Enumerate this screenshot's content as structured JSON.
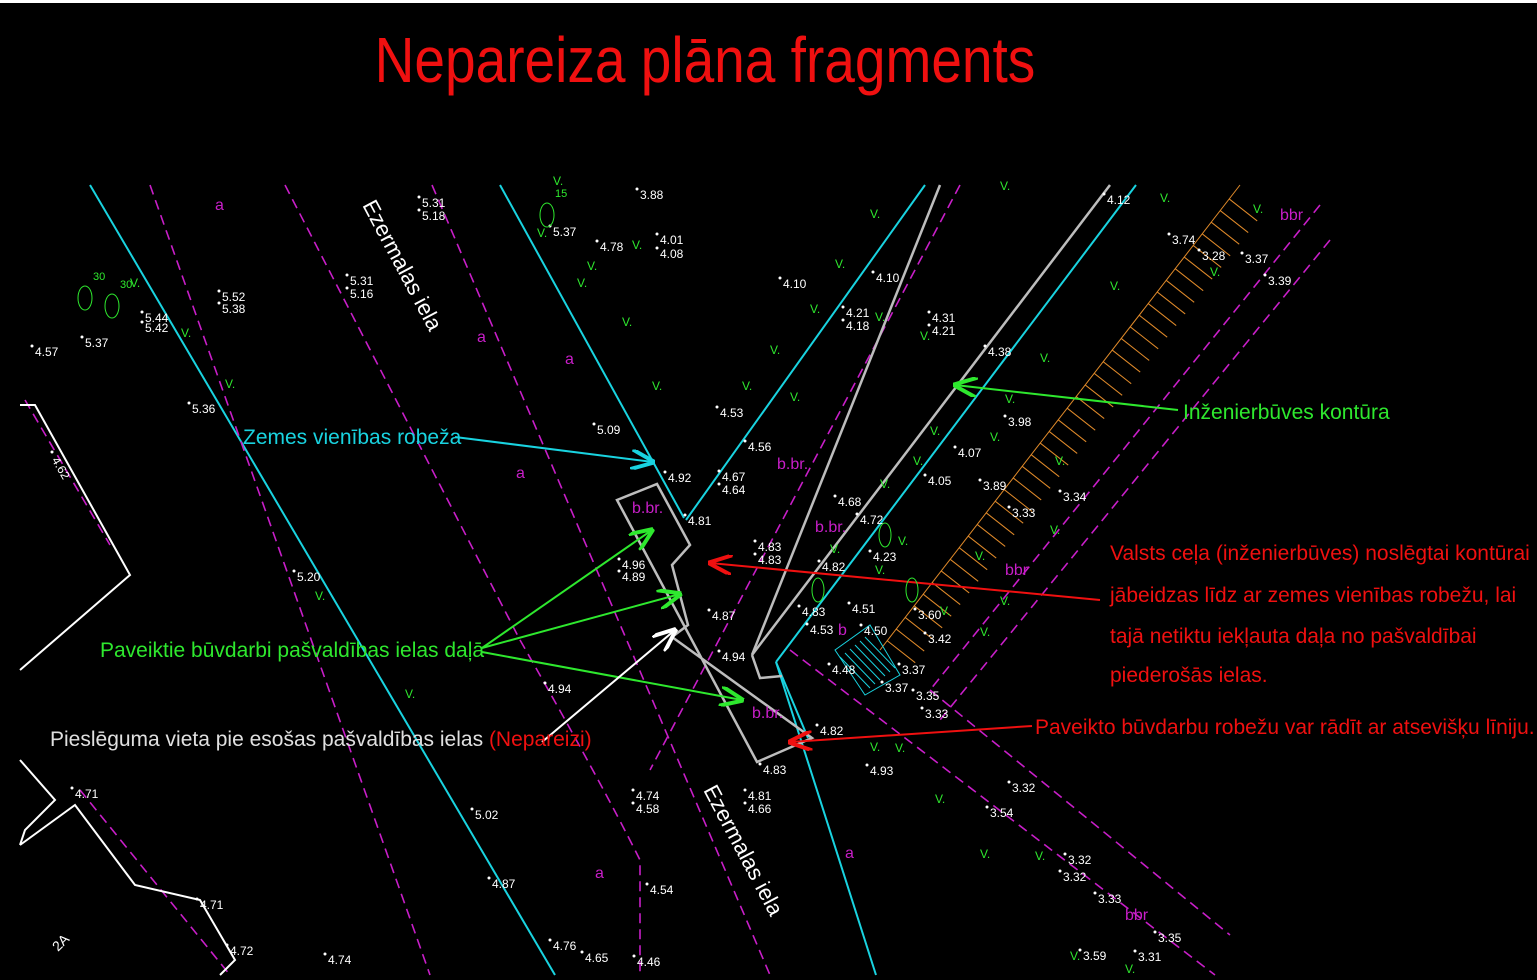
{
  "title": "Nepareiza plāna fragments",
  "annotations": {
    "land_boundary": "Zemes vienības robeža",
    "structure_contour": "Inženierbūves kontūra",
    "works_in_street": "Paveiktie būvdarbi pašvaldības ielas daļā",
    "connection_point": "Pieslēguma vieta pie esošas pašvaldības ielas",
    "connection_verdict": "(Nepareizi)",
    "closure_note": [
      "Valsts ceļa (inženierbūves) noslēgtai kontūrai",
      "jābeidzas līdz ar zemes vienības robežu, lai",
      "tajā netiktu iekļauta daļa no pašvaldībai",
      "piederošās ielas."
    ],
    "boundary_note": "Paveikto būvdarbu robežu var rādīt ar atsevišķu līniju."
  },
  "street_names": [
    "Ezermalas iela",
    "Ezermalas iela"
  ],
  "land_use_labels": [
    "a",
    "a",
    "a",
    "a",
    "a",
    "a",
    "b.br.",
    "b.br.",
    "b.br.",
    "b.br.",
    "b",
    "bbr",
    "bbr",
    "bbr"
  ],
  "vegetation_mark": "V.",
  "tree_labels": [
    "15",
    "30",
    "30"
  ],
  "parcel_label": "2A",
  "elevation_labels": [
    "3.88",
    "5.31",
    "5.18",
    "5.37",
    "4.78",
    "4.01",
    "4.08",
    "4.10",
    "4.10",
    "4.21",
    "4.18",
    "4.31",
    "4.21",
    "4.12",
    "3.74",
    "3.28",
    "3.37",
    "3.39",
    "4.38",
    "3.98",
    "4.07",
    "3.89",
    "4.05",
    "3.34",
    "3.33",
    "4.53",
    "5.09",
    "4.56",
    "4.92",
    "4.67",
    "4.64",
    "4.81",
    "4.68",
    "4.72",
    "4.23",
    "4.83",
    "4.83",
    "4.82",
    "4.96",
    "4.89",
    "4.87",
    "4.83",
    "4.51",
    "3.60",
    "4.53",
    "4.50",
    "3.42",
    "4.94",
    "4.48",
    "3.37",
    "3.37",
    "3.35",
    "3.33",
    "4.82",
    "4.83",
    "4.93",
    "3.32",
    "3.54",
    "3.32",
    "3.32",
    "3.33",
    "3.35",
    "3.59",
    "3.31",
    "4.81",
    "4.66",
    "4.74",
    "4.58",
    "5.02",
    "4.87",
    "4.54",
    "4.76",
    "4.65",
    "4.46",
    "4.74",
    "4.72",
    "4.71",
    "4.71",
    "5.20",
    "4.94",
    "5.36",
    "4.57",
    "5.37",
    "5.44",
    "5.42",
    "5.52",
    "5.38",
    "5.31",
    "5.16",
    "4.62"
  ]
}
